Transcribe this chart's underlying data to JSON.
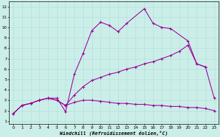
{
  "bg_color": "#cceee8",
  "grid_color": "#aaddd8",
  "line_color": "#990099",
  "xlabel": "Windchill (Refroidissement éolien,°C)",
  "xlim": [
    -0.5,
    23.5
  ],
  "ylim": [
    0.7,
    12.5
  ],
  "xticks": [
    0,
    1,
    2,
    3,
    4,
    5,
    6,
    7,
    8,
    9,
    10,
    11,
    12,
    13,
    14,
    15,
    16,
    17,
    18,
    19,
    20,
    21,
    22,
    23
  ],
  "yticks": [
    1,
    2,
    3,
    4,
    5,
    6,
    7,
    8,
    9,
    10,
    11,
    12
  ],
  "series1_x": [
    0,
    1,
    2,
    3,
    4,
    5,
    6,
    7,
    8,
    9,
    10,
    11,
    12,
    13,
    15,
    16,
    17,
    18,
    20,
    21,
    22
  ],
  "series1_y": [
    1.7,
    2.5,
    2.7,
    3.0,
    3.2,
    3.2,
    1.9,
    5.5,
    7.5,
    9.7,
    10.5,
    10.2,
    9.6,
    10.4,
    11.8,
    10.4,
    10.0,
    9.9,
    8.7,
    6.5,
    6.2
  ],
  "series2_x": [
    0,
    1,
    2,
    3,
    4,
    5,
    6,
    7,
    8,
    9,
    10,
    11,
    12,
    13,
    14,
    15,
    16,
    17,
    18,
    19,
    20,
    21,
    22,
    23
  ],
  "series2_y": [
    1.7,
    2.5,
    2.7,
    3.0,
    3.2,
    3.0,
    2.5,
    3.5,
    4.3,
    4.9,
    5.2,
    5.5,
    5.7,
    6.0,
    6.2,
    6.5,
    6.7,
    7.0,
    7.3,
    7.7,
    8.3,
    6.5,
    6.2,
    3.2
  ],
  "series3_x": [
    0,
    1,
    2,
    3,
    4,
    5,
    6,
    7,
    8,
    9,
    10,
    11,
    12,
    13,
    14,
    15,
    16,
    17,
    18,
    19,
    20,
    21,
    22,
    23
  ],
  "series3_y": [
    1.7,
    2.5,
    2.7,
    3.0,
    3.2,
    3.0,
    2.5,
    2.8,
    3.0,
    3.0,
    2.9,
    2.8,
    2.7,
    2.7,
    2.6,
    2.6,
    2.5,
    2.5,
    2.4,
    2.4,
    2.3,
    2.3,
    2.2,
    2.0
  ]
}
